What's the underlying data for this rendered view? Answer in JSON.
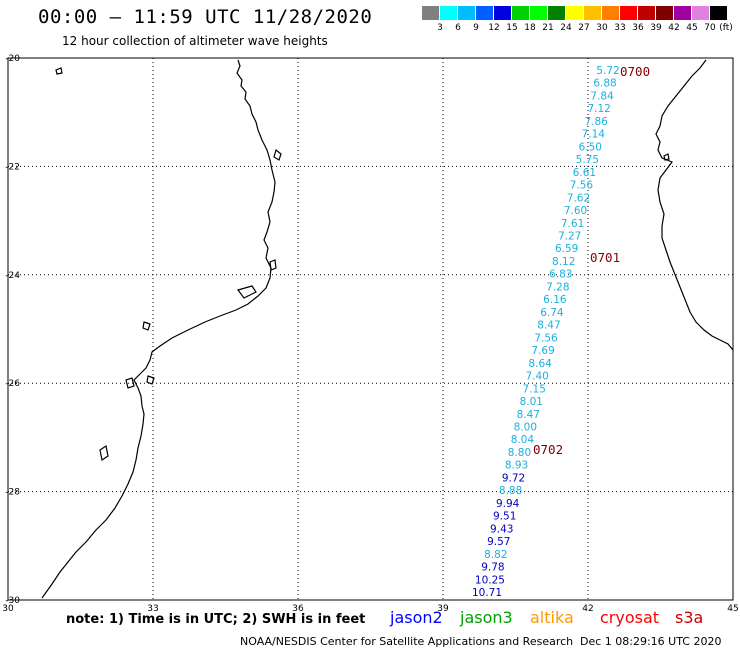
{
  "title": "00:00 — 11:59 UTC 11/28/2020",
  "subtitle": "12 hour collection of altimeter wave heights",
  "scale": {
    "unit": "(ft)",
    "items": [
      {
        "label": "",
        "color": "#808080"
      },
      {
        "label": "3",
        "color": "#00ffff"
      },
      {
        "label": "6",
        "color": "#00bfff"
      },
      {
        "label": "9",
        "color": "#0060ff"
      },
      {
        "label": "12",
        "color": "#0000e0"
      },
      {
        "label": "15",
        "color": "#00d000"
      },
      {
        "label": "18",
        "color": "#00ff00"
      },
      {
        "label": "21",
        "color": "#008000"
      },
      {
        "label": "24",
        "color": "#ffff00"
      },
      {
        "label": "27",
        "color": "#ffc000"
      },
      {
        "label": "30",
        "color": "#ff8000"
      },
      {
        "label": "33",
        "color": "#ff0000"
      },
      {
        "label": "36",
        "color": "#c00000"
      },
      {
        "label": "39",
        "color": "#800000"
      },
      {
        "label": "42",
        "color": "#a000a0"
      },
      {
        "label": "45",
        "color": "#e080e0"
      },
      {
        "label": "70",
        "color": "#000000"
      }
    ]
  },
  "axes": {
    "lat_ticks": [
      "-20",
      "-22",
      "-24",
      "-26",
      "-28",
      "-30"
    ],
    "lon_ticks": [
      "30",
      "33",
      "36",
      "39",
      "42",
      "45"
    ]
  },
  "track": {
    "points": [
      {
        "v": "5.72",
        "color": "#1ab0e0"
      },
      {
        "v": "6.88",
        "color": "#1ab0e0"
      },
      {
        "v": "7.84",
        "color": "#1ab0e0"
      },
      {
        "v": "7.12",
        "color": "#1ab0e0"
      },
      {
        "v": "7.86",
        "color": "#1ab0e0"
      },
      {
        "v": "7.14",
        "color": "#1ab0e0"
      },
      {
        "v": "6.50",
        "color": "#1ab0e0"
      },
      {
        "v": "5.75",
        "color": "#1ab0e0"
      },
      {
        "v": "6.61",
        "color": "#1ab0e0"
      },
      {
        "v": "7.56",
        "color": "#1ab0e0"
      },
      {
        "v": "7.62",
        "color": "#1ab0e0"
      },
      {
        "v": "7.60",
        "color": "#1ab0e0"
      },
      {
        "v": "7.61",
        "color": "#1ab0e0"
      },
      {
        "v": "7.27",
        "color": "#1ab0e0"
      },
      {
        "v": "6.59",
        "color": "#1ab0e0"
      },
      {
        "v": "8.12",
        "color": "#1ab0e0"
      },
      {
        "v": "6.83",
        "color": "#1ab0e0"
      },
      {
        "v": "7.28",
        "color": "#1ab0e0"
      },
      {
        "v": "6.16",
        "color": "#1ab0e0"
      },
      {
        "v": "6.74",
        "color": "#1ab0e0"
      },
      {
        "v": "8.47",
        "color": "#1ab0e0"
      },
      {
        "v": "7.56",
        "color": "#1ab0e0"
      },
      {
        "v": "7.69",
        "color": "#1ab0e0"
      },
      {
        "v": "8.64",
        "color": "#1ab0e0"
      },
      {
        "v": "7.40",
        "color": "#1ab0e0"
      },
      {
        "v": "7.15",
        "color": "#1ab0e0"
      },
      {
        "v": "8.01",
        "color": "#1ab0e0"
      },
      {
        "v": "8.47",
        "color": "#1ab0e0"
      },
      {
        "v": "8.00",
        "color": "#1ab0e0"
      },
      {
        "v": "8.04",
        "color": "#1ab0e0"
      },
      {
        "v": "8.80",
        "color": "#1ab0e0"
      },
      {
        "v": "8.93",
        "color": "#1ab0e0"
      },
      {
        "v": "9.72",
        "color": "#0000c0"
      },
      {
        "v": "8.88",
        "color": "#1ab0e0"
      },
      {
        "v": "9.94",
        "color": "#0000c0"
      },
      {
        "v": "9.51",
        "color": "#0000c0"
      },
      {
        "v": "9.43",
        "color": "#0000c0"
      },
      {
        "v": "9.57",
        "color": "#0000c0"
      },
      {
        "v": "8.82",
        "color": "#1ab0e0"
      },
      {
        "v": "9.78",
        "color": "#0000c0"
      },
      {
        "v": "10.25",
        "color": "#0000c0"
      },
      {
        "v": "10.71",
        "color": "#0000c0"
      }
    ],
    "times": [
      {
        "label": "0700",
        "color": "#800000"
      },
      {
        "label": "0701",
        "color": "#800000"
      },
      {
        "label": "0702",
        "color": "#800000"
      }
    ]
  },
  "footer": {
    "note": "note: 1) Time is in UTC; 2) SWH is in feet",
    "satellites": [
      {
        "name": "jason2",
        "color": "#0000ff"
      },
      {
        "name": "jason3",
        "color": "#00a000"
      },
      {
        "name": "altika",
        "color": "#ff9900"
      },
      {
        "name": "cryosat",
        "color": "#ff0000"
      },
      {
        "name": "s3a",
        "color": "#cc0000"
      }
    ],
    "credit_left": "NOAA/NESDIS Center for Satellite Applications and Research",
    "credit_right": "Dec  1 08:29:16 UTC 2020"
  }
}
